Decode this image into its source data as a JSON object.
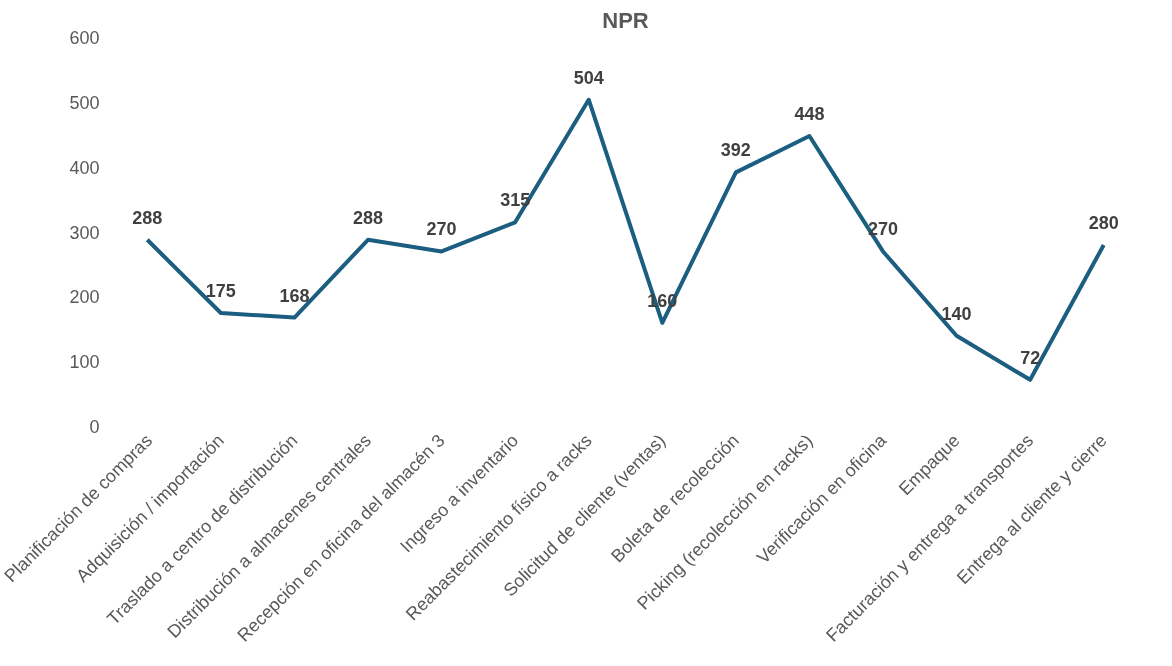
{
  "chart_data": {
    "type": "line",
    "title": "NPR",
    "categories": [
      "Planificación de compras",
      "Adquisición / importación",
      "Traslado a centro de distribución",
      "Distribución a almacenes centrales",
      "Recepción en oficina del almacén 3",
      "Ingreso a inventario",
      "Reabastecimiento físico a racks",
      "Solicitud de cliente (ventas)",
      "Boleta de recolección",
      "Picking (recolección en racks)",
      "Verificación en oficina",
      "Empaque",
      "Facturación y entrega a transportes",
      "Entrega al cliente y cierre"
    ],
    "series": [
      {
        "color": "#1b5e80",
        "values": [
          288,
          175,
          168,
          288,
          270,
          315,
          504,
          160,
          392,
          448,
          270,
          140,
          72,
          280
        ]
      }
    ],
    "ylim": [
      0,
      600
    ],
    "yticks": [
      0,
      100,
      200,
      300,
      400,
      500,
      600
    ],
    "grid": false,
    "marker": "none",
    "line_style": "solid",
    "data_labels": true
  }
}
